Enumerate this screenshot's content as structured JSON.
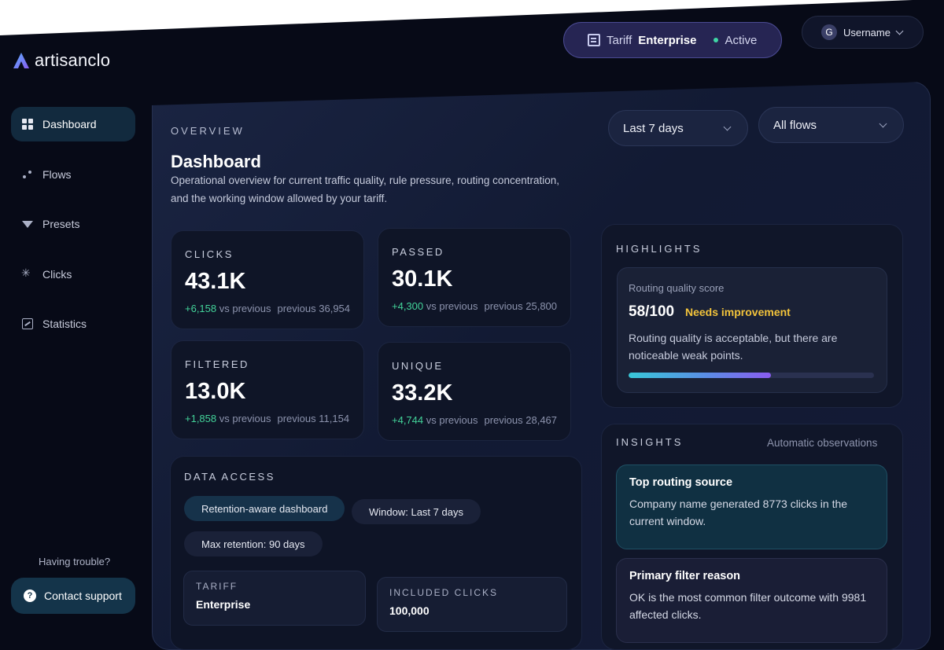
{
  "brand": {
    "name": "artisanclo"
  },
  "topbar": {
    "tariff_label": "Tariff",
    "tariff_plan": "Enterprise",
    "tariff_status": "Active",
    "user_initial": "G",
    "username": "Username"
  },
  "sidebar": {
    "items": [
      {
        "label": "Dashboard",
        "icon": "dashboard-icon"
      },
      {
        "label": "Flows",
        "icon": "flows-icon"
      },
      {
        "label": "Presets",
        "icon": "filter-icon"
      },
      {
        "label": "Clicks",
        "icon": "clicks-icon"
      },
      {
        "label": "Statistics",
        "icon": "statistics-icon"
      }
    ],
    "help_text": "Having trouble?",
    "support_label": "Contact support"
  },
  "header": {
    "overline": "OVERVIEW",
    "title": "Dashboard",
    "description": "Operational overview for current traffic quality, rule pressure, routing concentration, and the working window allowed by your tariff."
  },
  "filters": {
    "period": "Last 7 days",
    "flows": "All flows"
  },
  "stats": [
    {
      "label": "CLICKS",
      "value": "43.1K",
      "delta": "+6,158",
      "vs": "vs previous",
      "previous": "previous 36,954"
    },
    {
      "label": "PASSED",
      "value": "30.1K",
      "delta": "+4,300",
      "vs": "vs previous",
      "previous": "previous 25,800"
    },
    {
      "label": "FILTERED",
      "value": "13.0K",
      "delta": "+1,858",
      "vs": "vs previous",
      "previous": "previous 11,154"
    },
    {
      "label": "UNIQUE",
      "value": "33.2K",
      "delta": "+4,744",
      "vs": "vs previous",
      "previous": "previous 28,467"
    }
  ],
  "data_access": {
    "title": "DATA ACCESS",
    "chips": [
      "Retention-aware dashboard",
      "Window: Last 7 days",
      "Max retention: 90 days"
    ],
    "tariff_label": "TARIFF",
    "tariff_value": "Enterprise",
    "clicks_label": "INCLUDED CLICKS",
    "clicks_value": "100,000"
  },
  "highlights": {
    "title": "HIGHLIGHTS",
    "score_label": "Routing quality score",
    "score_value": "58/100",
    "score_badge": "Needs improvement",
    "score_desc": "Routing quality is acceptable, but there are noticeable weak points.",
    "score_progress": 0.58
  },
  "insights": {
    "title": "INSIGHTS",
    "subtitle": "Automatic observations",
    "items": [
      {
        "title": "Top routing source",
        "body": "Company name generated 8773 clicks in the current window."
      },
      {
        "title": "Primary filter reason",
        "body": "OK is the most common filter outcome with 9981 affected clicks."
      }
    ]
  },
  "colors": {
    "background": "#070a17",
    "accent_teal": "#38c8d8",
    "accent_purple": "#8a5cf0",
    "positive": "#43d49a",
    "warning": "#f2c33b",
    "status_active": "#3fd6a5"
  }
}
